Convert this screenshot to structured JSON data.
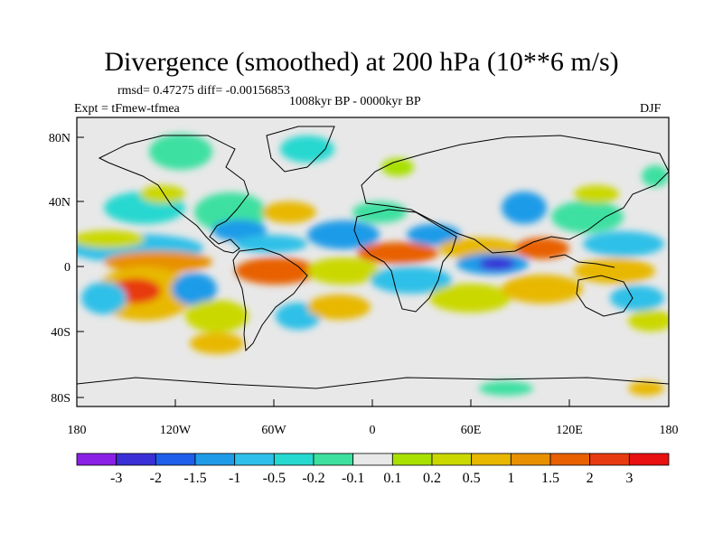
{
  "title": "Divergence (smoothed) at 200 hPa (10**6 m/s)",
  "stats": "rmsd= 0.47275 diff= -0.00156853",
  "period": "1008kyr BP - 0000kyr BP",
  "experiment": "Expt = tFmew-tfmea",
  "season": "DJF",
  "y_ticks": [
    "80N",
    "40N",
    "0",
    "40S",
    "80S"
  ],
  "x_ticks": [
    "180",
    "120W",
    "60W",
    "0",
    "60E",
    "120E",
    "180"
  ],
  "colorbar": {
    "labels": [
      "-3",
      "-2",
      "-1.5",
      "-1",
      "-0.5",
      "-0.2",
      "-0.1",
      "0.1",
      "0.2",
      "0.5",
      "1",
      "1.5",
      "2",
      "3"
    ],
    "colors": [
      "#8a1fe6",
      "#3a2fd6",
      "#1e5ee8",
      "#1f9be8",
      "#2ec0e8",
      "#25d8d0",
      "#3ee0a0",
      "#e8e8e8",
      "#a8e000",
      "#cbd800",
      "#e8b800",
      "#e89000",
      "#e86000",
      "#e83a10",
      "#e81010"
    ]
  }
}
